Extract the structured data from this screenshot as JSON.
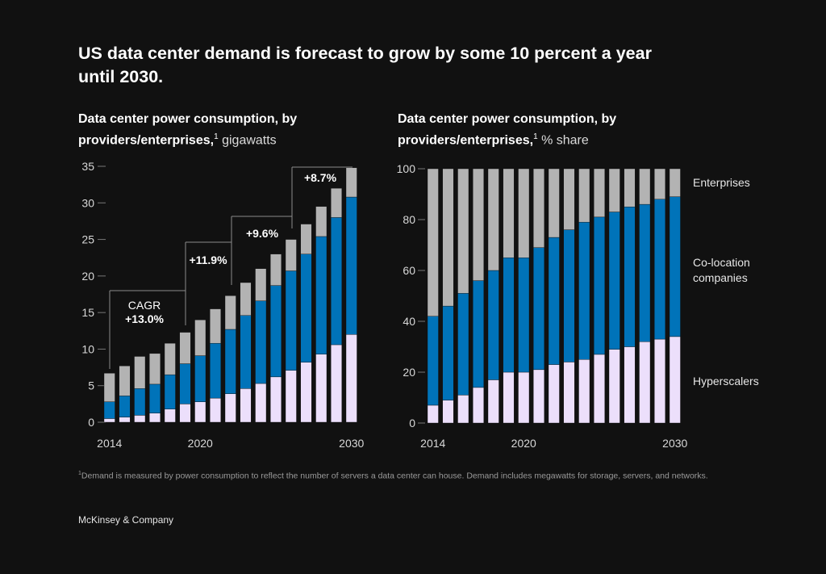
{
  "title": "US data center demand is forecast to grow by some 10 percent a year until 2030.",
  "left_subtitle": {
    "bold": "Data center power consumption, by providers/enterprises,",
    "sup": "1",
    "unit": " gigawatts"
  },
  "right_subtitle": {
    "bold": "Data center power consumption, by providers/enterprises,",
    "sup": "1",
    "unit": " % share"
  },
  "footnote": {
    "sup": "1",
    "text": "Demand is measured by power consumption to reflect the number of servers a data center can house. Demand includes megawatts for storage, servers, and networks."
  },
  "brand": "McKinsey & Company",
  "colors": {
    "background": "#111111",
    "Hyperscalers": "#ecdffb",
    "Co-location companies": "#0073b9",
    "Enterprises": "#b3b3b3"
  },
  "chart_data": [
    {
      "type": "bar",
      "stacked": true,
      "years": [
        2014,
        2015,
        2016,
        2017,
        2018,
        2019,
        2020,
        2021,
        2022,
        2023,
        2024,
        2025,
        2026,
        2027,
        2028,
        2029,
        2030
      ],
      "x_tick_labels": [
        "2014",
        "2020",
        "2030"
      ],
      "y_ticks": [
        "0",
        "5",
        "10",
        "15",
        "20",
        "25",
        "30",
        "35"
      ],
      "ylim": [
        0,
        35
      ],
      "series": [
        {
          "name": "Hyperscalers",
          "values": [
            0.5,
            0.7,
            0.95,
            1.25,
            1.8,
            2.5,
            2.8,
            3.3,
            3.9,
            4.6,
            5.3,
            6.2,
            7.1,
            8.2,
            9.3,
            10.6,
            12.0
          ]
        },
        {
          "name": "Co-location companies",
          "values": [
            2.3,
            2.9,
            3.65,
            3.95,
            4.7,
            5.5,
            6.3,
            7.5,
            8.8,
            10.0,
            11.3,
            12.5,
            13.6,
            14.8,
            16.1,
            17.4,
            18.8
          ]
        },
        {
          "name": "Enterprises",
          "values": [
            3.9,
            4.1,
            4.4,
            4.2,
            4.3,
            4.3,
            4.9,
            4.7,
            4.6,
            4.5,
            4.4,
            4.3,
            4.3,
            4.1,
            4.1,
            4.0,
            4.0
          ]
        }
      ],
      "annotations": {
        "cagr_label": "CAGR",
        "periods": [
          "+13.0%",
          "+11.9%",
          "+9.6%",
          "+8.7%"
        ]
      }
    },
    {
      "type": "bar",
      "stacked": true,
      "years": [
        2014,
        2015,
        2016,
        2017,
        2018,
        2019,
        2020,
        2021,
        2022,
        2023,
        2024,
        2025,
        2026,
        2027,
        2028,
        2029,
        2030
      ],
      "x_tick_labels": [
        "2014",
        "2020",
        "2030"
      ],
      "y_ticks": [
        "0",
        "20",
        "40",
        "60",
        "80",
        "100"
      ],
      "ylim": [
        0,
        100
      ],
      "series": [
        {
          "name": "Hyperscalers",
          "values": [
            7,
            9,
            11,
            14,
            17,
            20,
            20,
            21,
            23,
            24,
            25,
            27,
            29,
            30,
            32,
            33,
            34
          ]
        },
        {
          "name": "Co-location companies",
          "values": [
            35,
            37,
            40,
            42,
            43,
            45,
            45,
            48,
            50,
            52,
            54,
            54,
            54,
            55,
            54,
            55,
            55
          ]
        },
        {
          "name": "Enterprises",
          "values": [
            58,
            54,
            49,
            44,
            40,
            35,
            35,
            31,
            27,
            24,
            21,
            19,
            17,
            15,
            14,
            12,
            11
          ]
        }
      ],
      "legend": {
        "position": "right",
        "labels": [
          "Enterprises",
          "Co-location\ncompanies",
          "Hyperscalers"
        ]
      }
    }
  ]
}
